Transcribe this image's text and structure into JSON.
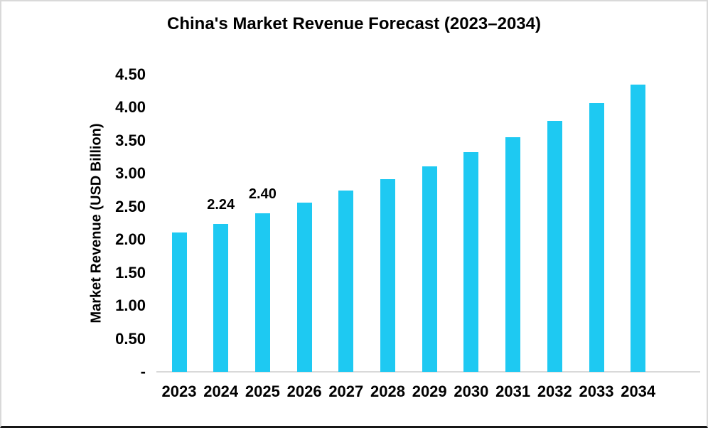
{
  "chart_data": {
    "type": "bar",
    "title": "China's Market Revenue Forecast (2023–2034)",
    "xlabel": "",
    "ylabel": "Market Revenue (USD Billion)",
    "categories": [
      "2023",
      "2024",
      "2025",
      "2026",
      "2027",
      "2028",
      "2029",
      "2030",
      "2031",
      "2032",
      "2033",
      "2034"
    ],
    "values": [
      2.11,
      2.24,
      2.4,
      2.56,
      2.74,
      2.92,
      3.11,
      3.33,
      3.55,
      3.8,
      4.07,
      4.35
    ],
    "annotations": [
      {
        "category": "2024",
        "text": "2.24"
      },
      {
        "category": "2025",
        "text": "2.40"
      }
    ],
    "y_ticks": [
      {
        "value": 0,
        "label": "-"
      },
      {
        "value": 0.5,
        "label": "0.50"
      },
      {
        "value": 1,
        "label": "1.00"
      },
      {
        "value": 1.5,
        "label": "1.50"
      },
      {
        "value": 2,
        "label": "2.00"
      },
      {
        "value": 2.5,
        "label": "2.50"
      },
      {
        "value": 3,
        "label": "3.00"
      },
      {
        "value": 3.5,
        "label": "3.50"
      },
      {
        "value": 4,
        "label": "4.00"
      },
      {
        "value": 4.5,
        "label": "4.50"
      }
    ],
    "ylim": [
      0,
      4.5
    ],
    "grid": false,
    "legend": null,
    "colors": {
      "bar": "#1EC9F2",
      "axis_line": "#D9D9D9",
      "text": "#000000"
    }
  }
}
